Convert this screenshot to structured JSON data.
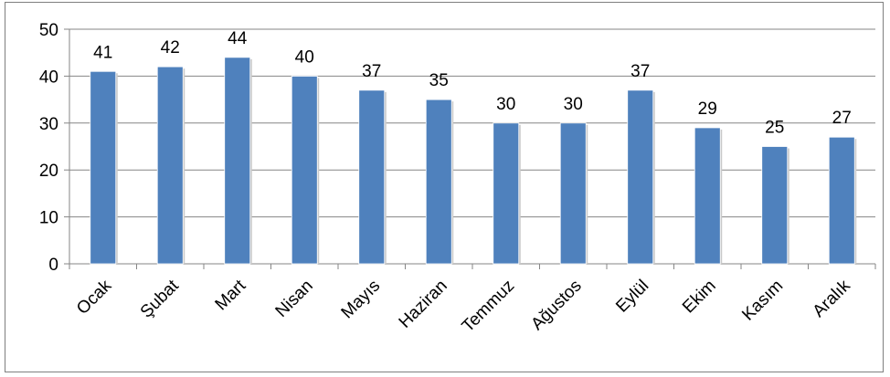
{
  "chart_data": {
    "type": "bar",
    "categories": [
      "Ocak",
      "Şubat",
      "Mart",
      "Nisan",
      "Mayıs",
      "Haziran",
      "Temmuz",
      "Ağustos",
      "Eylül",
      "Ekim",
      "Kasım",
      "Aralık"
    ],
    "series": [
      {
        "values": [
          41,
          42,
          44,
          40,
          37,
          35,
          30,
          30,
          37,
          29,
          25,
          27
        ]
      }
    ],
    "ylim": [
      0,
      50
    ],
    "yticks": [
      0,
      10,
      20,
      30,
      40,
      50
    ],
    "grid": true,
    "legend": "none",
    "data_labels": true,
    "bar_color": "#4f81bd",
    "grid_color": "#868686",
    "title": "",
    "xlabel": "",
    "ylabel": ""
  }
}
